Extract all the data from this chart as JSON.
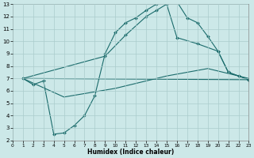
{
  "xlabel": "Humidex (Indice chaleur)",
  "bg_color": "#cce8e8",
  "grid_color": "#aacccc",
  "line_color": "#1a6b6b",
  "xlim": [
    0,
    23
  ],
  "ylim": [
    2,
    13
  ],
  "xticks": [
    0,
    1,
    2,
    3,
    4,
    5,
    6,
    7,
    8,
    9,
    10,
    11,
    12,
    13,
    14,
    15,
    16,
    17,
    18,
    19,
    20,
    21,
    22,
    23
  ],
  "yticks": [
    2,
    3,
    4,
    5,
    6,
    7,
    8,
    9,
    10,
    11,
    12,
    13
  ],
  "line1_x": [
    1,
    2,
    3,
    4,
    5,
    6,
    7,
    8,
    9,
    10,
    11,
    12,
    13,
    14,
    15,
    16,
    17,
    18,
    19,
    20,
    21,
    22,
    23
  ],
  "line1_y": [
    7.0,
    6.5,
    6.8,
    2.5,
    2.6,
    3.2,
    4.0,
    5.6,
    9.0,
    10.7,
    11.5,
    11.9,
    12.5,
    13.0,
    13.2,
    13.2,
    11.9,
    11.5,
    10.4,
    9.2,
    7.5,
    7.2,
    6.9
  ],
  "line2_x": [
    1,
    9,
    11,
    13,
    14,
    15,
    16,
    18,
    20,
    21,
    22,
    23
  ],
  "line2_y": [
    7.0,
    8.8,
    10.5,
    12.0,
    12.5,
    13.0,
    10.3,
    9.8,
    9.2,
    7.5,
    7.2,
    6.9
  ],
  "line3_x": [
    1,
    5,
    10,
    15,
    19,
    23
  ],
  "line3_y": [
    7.0,
    5.5,
    6.2,
    7.2,
    7.8,
    7.0
  ],
  "line4_x": [
    1,
    23
  ],
  "line4_y": [
    7.0,
    6.9
  ]
}
